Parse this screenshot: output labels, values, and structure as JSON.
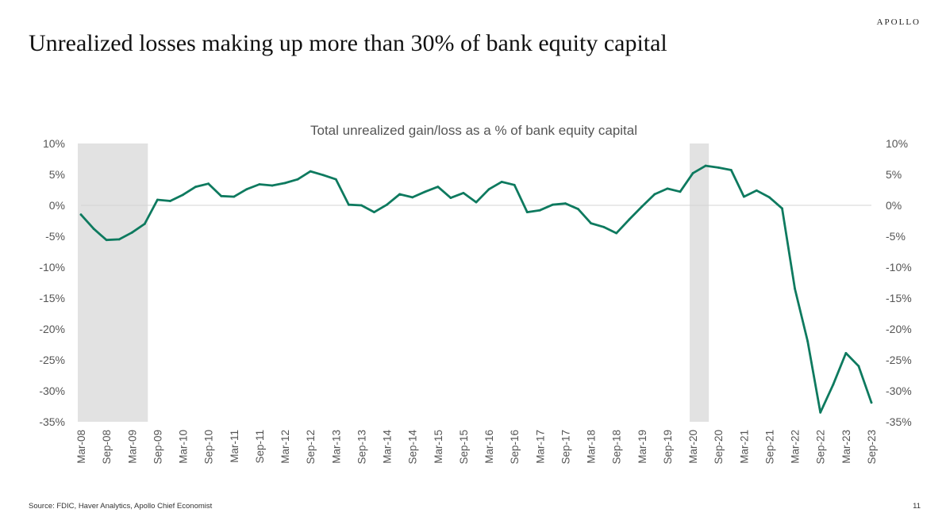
{
  "header": {
    "brand": "APOLLO",
    "title": "Unrealized losses making up more than 30% of bank equity capital"
  },
  "footer": {
    "source": "Source: FDIC, Haver Analytics, Apollo Chief Economist",
    "page_number": "11"
  },
  "chart_data": {
    "type": "line",
    "title": "Total unrealized gain/loss as a % of bank equity capital",
    "xlabel": "",
    "ylabel": "",
    "ylim": [
      -35,
      10
    ],
    "yticks": [
      10,
      5,
      0,
      -5,
      -10,
      -15,
      -20,
      -25,
      -30,
      -35
    ],
    "ytick_labels": [
      "10%",
      "5%",
      "0%",
      "-5%",
      "-10%",
      "-15%",
      "-20%",
      "-25%",
      "-30%",
      "-35%"
    ],
    "dual_y_axis": true,
    "grid": false,
    "line_color": "#0e7a5f",
    "shade_color": "#e2e2e2",
    "x_tick_labels": [
      "Mar-08",
      "Sep-08",
      "Mar-09",
      "Sep-09",
      "Mar-10",
      "Sep-10",
      "Mar-11",
      "Sep-11",
      "Mar-12",
      "Sep-12",
      "Mar-13",
      "Sep-13",
      "Mar-14",
      "Sep-14",
      "Mar-15",
      "Sep-15",
      "Mar-16",
      "Sep-16",
      "Mar-17",
      "Sep-17",
      "Mar-18",
      "Sep-18",
      "Mar-19",
      "Sep-19",
      "Mar-20",
      "Sep-20",
      "Mar-21",
      "Sep-21",
      "Mar-22",
      "Sep-22",
      "Mar-23",
      "Sep-23"
    ],
    "recession_shading": [
      {
        "start": "Mar-08",
        "end": "Jun-09"
      },
      {
        "start": "Mar-20",
        "end": "Jun-20"
      }
    ],
    "x": [
      "Mar-08",
      "Jun-08",
      "Sep-08",
      "Dec-08",
      "Mar-09",
      "Jun-09",
      "Sep-09",
      "Dec-09",
      "Mar-10",
      "Jun-10",
      "Sep-10",
      "Dec-10",
      "Mar-11",
      "Jun-11",
      "Sep-11",
      "Dec-11",
      "Mar-12",
      "Jun-12",
      "Sep-12",
      "Dec-12",
      "Mar-13",
      "Jun-13",
      "Sep-13",
      "Dec-13",
      "Mar-14",
      "Jun-14",
      "Sep-14",
      "Dec-14",
      "Mar-15",
      "Jun-15",
      "Sep-15",
      "Dec-15",
      "Mar-16",
      "Jun-16",
      "Sep-16",
      "Dec-16",
      "Mar-17",
      "Jun-17",
      "Sep-17",
      "Dec-17",
      "Mar-18",
      "Jun-18",
      "Sep-18",
      "Dec-18",
      "Mar-19",
      "Jun-19",
      "Sep-19",
      "Dec-19",
      "Mar-20",
      "Jun-20",
      "Sep-20",
      "Dec-20",
      "Mar-21",
      "Jun-21",
      "Sep-21",
      "Dec-21",
      "Mar-22",
      "Jun-22",
      "Sep-22",
      "Dec-22",
      "Mar-23",
      "Jun-23",
      "Sep-23"
    ],
    "series": [
      {
        "values": [
          -1.5,
          -3.8,
          -5.6,
          -5.5,
          -4.4,
          -3.0,
          0.9,
          0.7,
          1.7,
          3.0,
          3.5,
          1.5,
          1.4,
          2.6,
          3.4,
          3.2,
          3.6,
          4.2,
          5.5,
          4.9,
          4.2,
          0.1,
          0.0,
          -1.1,
          0.1,
          1.8,
          1.3,
          2.2,
          3.0,
          1.2,
          2.0,
          0.5,
          2.6,
          3.8,
          3.3,
          -1.1,
          -0.8,
          0.1,
          0.3,
          -0.6,
          -2.9,
          -3.5,
          -4.5,
          -2.3,
          -0.2,
          1.8,
          2.7,
          2.2,
          5.2,
          6.4,
          6.1,
          5.7,
          1.4,
          2.4,
          1.3,
          -0.5,
          -13.5,
          -22.0,
          -33.5,
          -29.0,
          -23.9,
          -26.0,
          -31.9
        ]
      }
    ]
  }
}
